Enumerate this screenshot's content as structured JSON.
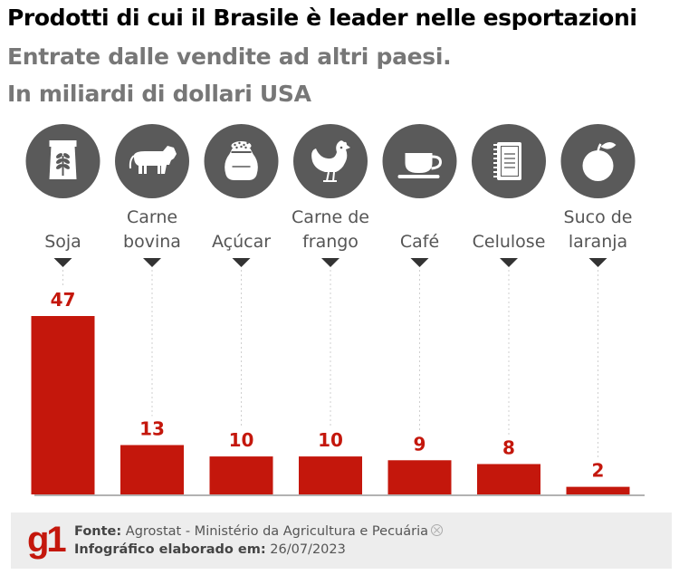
{
  "header": {
    "title": "Prodotti di cui il Brasile è leader nelle esportazioni",
    "subtitle_line1": "Entrate dalle vendite ad altri paesi.",
    "subtitle_line2": "In miliardi di dollari USA"
  },
  "chart_data": {
    "type": "bar",
    "title": "Prodotti di cui il Brasile è leader nelle esportazioni",
    "ylabel": "",
    "xlabel": "",
    "ylim": [
      0,
      47
    ],
    "grid": false,
    "bar_color": "#c4170c",
    "icon_bg_color": "#5a5a5a",
    "categories": [
      {
        "lines": [
          "Soja"
        ],
        "icon": "grain-sack-icon"
      },
      {
        "lines": [
          "Carne",
          "bovina"
        ],
        "icon": "cow-icon"
      },
      {
        "lines": [
          "Açúcar"
        ],
        "icon": "sugar-sack-icon"
      },
      {
        "lines": [
          "Carne de",
          "frango"
        ],
        "icon": "chicken-icon"
      },
      {
        "lines": [
          "Café"
        ],
        "icon": "coffee-cup-icon"
      },
      {
        "lines": [
          "Celulose"
        ],
        "icon": "notebook-icon"
      },
      {
        "lines": [
          "Suco de",
          "laranja"
        ],
        "icon": "orange-icon"
      }
    ],
    "values": [
      47,
      13,
      10,
      10,
      9,
      8,
      2
    ],
    "value_labels": [
      "47",
      "13",
      "10",
      "10",
      "9",
      "8",
      "2"
    ]
  },
  "footer": {
    "logo": "g1",
    "source_label": "Fonte:",
    "source_value": "Agrostat - Ministério da Agricultura e Pecuária",
    "date_label": "Infográfico elaborado em:",
    "date_value": "26/07/2023"
  }
}
